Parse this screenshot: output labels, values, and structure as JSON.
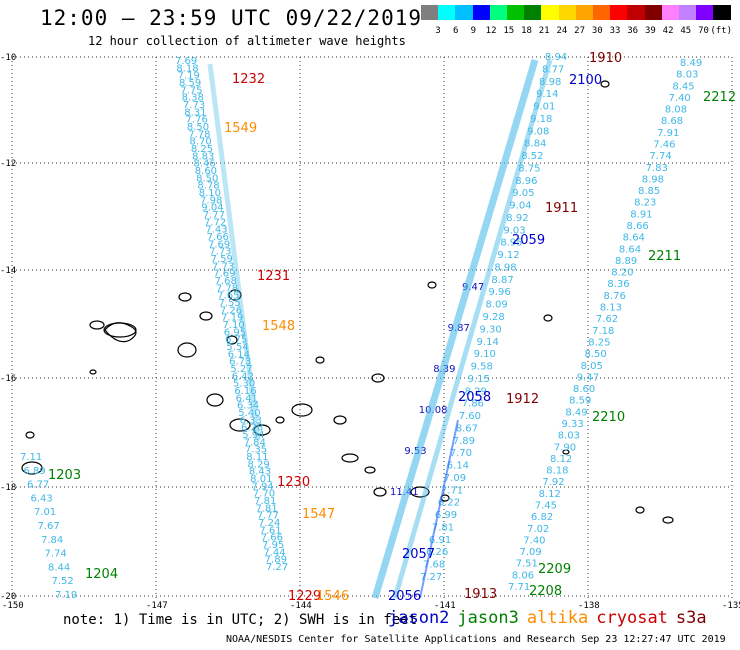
{
  "title": "12:00 – 23:59 UTC 09/22/2019",
  "subtitle": "12 hour collection of altimeter wave heights",
  "color_scale": {
    "labels": [
      "3",
      "6",
      "9",
      "12",
      "15",
      "18",
      "21",
      "24",
      "27",
      "30",
      "33",
      "36",
      "39",
      "42",
      "45",
      "70"
    ],
    "unit": "(ft)",
    "colors": [
      "#7f7f7f",
      "#00ffff",
      "#00bfff",
      "#0000ff",
      "#00ff7f",
      "#00c000",
      "#008000",
      "#ffff00",
      "#ffd700",
      "#ffa500",
      "#ff6600",
      "#ff0000",
      "#c00000",
      "#800000",
      "#ff80ff",
      "#c080ff",
      "#8000ff",
      "#000000"
    ]
  },
  "axes": {
    "lat_labels": [
      "-10",
      "-12",
      "-14",
      "-16",
      "-18",
      "-20"
    ],
    "lon_labels": [
      "-150",
      "-147",
      "-144",
      "-141",
      "-138",
      "-135"
    ],
    "grid": "dotted"
  },
  "colors": {
    "jason2": "#0000cc",
    "jason3": "#008000",
    "altika": "#ff8c00",
    "cryosat": "#cc0000",
    "s3a": "#800000",
    "light": "#3fb8e8",
    "coast": "#000000"
  },
  "time_labels": [
    {
      "text": "1910",
      "sat": "s3a"
    },
    {
      "text": "2100",
      "sat": "jason2"
    },
    {
      "text": "2212",
      "sat": "jason3"
    },
    {
      "text": "1232",
      "sat": "cryosat"
    },
    {
      "text": "1549",
      "sat": "altika"
    },
    {
      "text": "1911",
      "sat": "s3a"
    },
    {
      "text": "2059",
      "sat": "jason2"
    },
    {
      "text": "2211",
      "sat": "jason3"
    },
    {
      "text": "1231",
      "sat": "cryosat"
    },
    {
      "text": "1548",
      "sat": "altika"
    },
    {
      "text": "2058",
      "sat": "jason2"
    },
    {
      "text": "1912",
      "sat": "s3a"
    },
    {
      "text": "2210",
      "sat": "jason3"
    },
    {
      "text": "1203",
      "sat": "jason3"
    },
    {
      "text": "1230",
      "sat": "cryosat"
    },
    {
      "text": "1547",
      "sat": "altika"
    },
    {
      "text": "2057",
      "sat": "jason2"
    },
    {
      "text": "1204",
      "sat": "jason3"
    },
    {
      "text": "2209",
      "sat": "jason3"
    },
    {
      "text": "1229",
      "sat": "cryosat"
    },
    {
      "text": "1546",
      "sat": "altika"
    },
    {
      "text": "2056",
      "sat": "jason2"
    },
    {
      "text": "1913",
      "sat": "s3a"
    },
    {
      "text": "2208",
      "sat": "jason3"
    }
  ],
  "track_values": {
    "track_a": [
      "7.69",
      "8.18",
      "7.19",
      "8.59",
      "7.75",
      "8.38",
      "7.73",
      "8.31",
      "7.76",
      "8.50",
      "7.78",
      "8.70",
      "8.25",
      "8.83",
      "8.46",
      "8.60",
      "8.50",
      "8.78",
      "8.10",
      "7.98",
      "9.04",
      "7.77",
      "7.72",
      "7.43",
      "7.66",
      "7.69",
      "7.73",
      "7.59",
      "7.73",
      "7.69",
      "7.68",
      "7.78",
      "7.65",
      "7.55",
      "7.26",
      "7.19",
      "7.10",
      "6.95",
      "6.75",
      "5.54",
      "6.14",
      "6.73",
      "5.27",
      "6.42",
      "5.30",
      "6.16",
      "6.41",
      "6.34",
      "5.40",
      "6.33",
      "6.28",
      "5.94",
      "7.84",
      "7.35",
      "8.11",
      "8.29",
      "8.43",
      "8.01",
      "7.94",
      "7.70",
      "7.81",
      "7.81",
      "7.77",
      "7.24",
      "7.61",
      "7.66",
      "7.95",
      "7.44",
      "7.89",
      "7.27"
    ],
    "track_c": [
      "7.11",
      "6.89",
      "6.77",
      "6.43",
      "7.01",
      "7.67",
      "7.84",
      "7.74",
      "8.44",
      "7.52",
      "7.19"
    ],
    "track_b": [
      "8.94",
      "8.77",
      "8.98",
      "9.14",
      "9.01",
      "9.18",
      "9.08",
      "8.84",
      "8.52",
      "8.75",
      "8.96",
      "9.05",
      "9.04",
      "8.92",
      "9.03",
      "8.95",
      "9.12",
      "8.98",
      "8.87",
      "9.96",
      "8.09",
      "9.28",
      "9.30",
      "9.14",
      "9.10",
      "9.58",
      "9.15",
      "8.29",
      "7.86",
      "7.60",
      "8.67",
      "7.89",
      "7.70",
      "6.14",
      "7.09",
      "7.71",
      "6.22",
      "6.99",
      "7.81",
      "6.91",
      "6.26",
      "7.68",
      "7.27"
    ],
    "track_d": [
      "8.49",
      "8.03",
      "8.45",
      "7.40",
      "8.08",
      "8.68",
      "7.91",
      "7.46",
      "7.74",
      "7.83",
      "8.98",
      "8.85",
      "8.23",
      "8.91",
      "8.66",
      "8.64",
      "8.64",
      "8.89",
      "8.20",
      "8.36",
      "8.76",
      "8.13",
      "7.62",
      "7.18",
      "8.25",
      "8.50",
      "8.05",
      "9.47",
      "8.60",
      "8.59",
      "8.49",
      "9.33",
      "8.03",
      "7.90",
      "8.12",
      "8.18",
      "7.92",
      "8.12",
      "7.45",
      "6.82",
      "7.02",
      "7.40",
      "7.09",
      "7.51",
      "8.06",
      "7.71"
    ],
    "track_e": [
      "9.47",
      "9.87",
      "8.39",
      "10.08",
      "9.53",
      "11.41"
    ]
  },
  "footnote": "note: 1) Time is in UTC; 2) SWH is in feet",
  "legend": [
    {
      "label": "jason2",
      "sat": "jason2"
    },
    {
      "label": "jason3",
      "sat": "jason3"
    },
    {
      "label": "altika",
      "sat": "altika"
    },
    {
      "label": "cryosat",
      "sat": "cryosat"
    },
    {
      "label": "s3a",
      "sat": "s3a"
    }
  ],
  "credit": "NOAA/NESDIS Center for Satellite Applications and Research    Sep 23 12:27:47 UTC 2019"
}
